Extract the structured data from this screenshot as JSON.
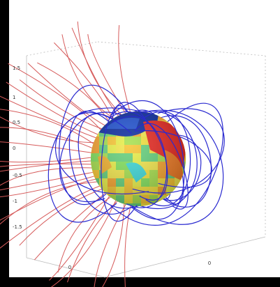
{
  "figure": {
    "z_ticks": [
      "1.5",
      "1",
      "0.5",
      "0",
      "-0.5",
      "-1",
      "-1.5"
    ],
    "floor_ticks": [
      "0",
      "0"
    ]
  }
}
